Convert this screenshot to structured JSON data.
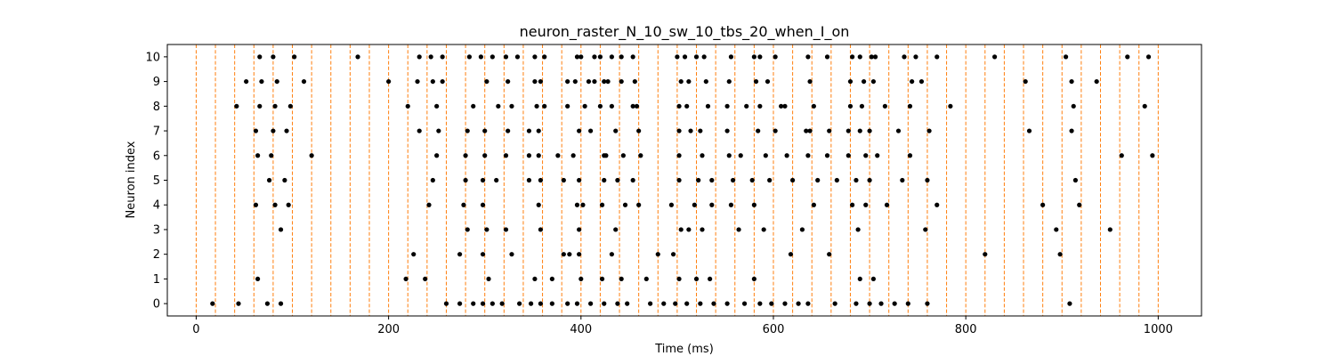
{
  "chart_data": {
    "type": "scatter",
    "title": "neuron_raster_N_10_sw_10_tbs_20_when_I_on",
    "xlabel": "Time (ms)",
    "ylabel": "Neuron index",
    "xlim": [
      -30,
      1045
    ],
    "ylim": [
      -0.5,
      10.5
    ],
    "xticks": [
      0,
      200,
      400,
      600,
      800,
      1000
    ],
    "yticks": [
      0,
      1,
      2,
      3,
      4,
      5,
      6,
      7,
      8,
      9,
      10
    ],
    "grid": false,
    "point_color": "#000000",
    "vlines": {
      "color": "#ff7f0e",
      "style": "dashed",
      "x": [
        0,
        20,
        40,
        60,
        80,
        100,
        120,
        140,
        160,
        180,
        200,
        220,
        240,
        260,
        280,
        300,
        320,
        340,
        360,
        380,
        400,
        420,
        440,
        460,
        480,
        500,
        520,
        540,
        560,
        580,
        600,
        620,
        640,
        660,
        680,
        700,
        720,
        740,
        760,
        780,
        800,
        820,
        840,
        860,
        880,
        900,
        920,
        940,
        960,
        980,
        1000
      ]
    },
    "series": [
      {
        "neuron": 0,
        "times": [
          17,
          44,
          74,
          88,
          260,
          274,
          288,
          298,
          308,
          318,
          336,
          348,
          358,
          370,
          386,
          396,
          410,
          424,
          438,
          448,
          472,
          486,
          498,
          510,
          524,
          538,
          552,
          570,
          586,
          598,
          612,
          626,
          636,
          664,
          686,
          700,
          712,
          726,
          740,
          760,
          908
        ]
      },
      {
        "neuron": 1,
        "times": [
          64,
          218,
          238,
          304,
          352,
          370,
          400,
          422,
          442,
          468,
          502,
          520,
          534,
          580,
          690,
          704
        ]
      },
      {
        "neuron": 2,
        "times": [
          226,
          274,
          298,
          328,
          382,
          388,
          398,
          432,
          480,
          496,
          618,
          658,
          820,
          898
        ]
      },
      {
        "neuron": 3,
        "times": [
          88,
          282,
          302,
          322,
          358,
          398,
          436,
          504,
          512,
          526,
          564,
          590,
          630,
          688,
          758,
          894,
          950
        ]
      },
      {
        "neuron": 4,
        "times": [
          62,
          82,
          96,
          242,
          278,
          298,
          356,
          396,
          402,
          422,
          446,
          460,
          494,
          518,
          536,
          556,
          580,
          642,
          682,
          696,
          718,
          770,
          880,
          918
        ]
      },
      {
        "neuron": 5,
        "times": [
          76,
          92,
          246,
          280,
          298,
          312,
          346,
          358,
          382,
          398,
          424,
          438,
          454,
          502,
          522,
          536,
          558,
          578,
          596,
          620,
          646,
          666,
          686,
          700,
          734,
          760,
          914
        ]
      },
      {
        "neuron": 6,
        "times": [
          64,
          78,
          120,
          250,
          280,
          300,
          322,
          346,
          356,
          376,
          392,
          424,
          426,
          444,
          462,
          502,
          526,
          554,
          566,
          592,
          614,
          636,
          656,
          678,
          696,
          708,
          742,
          962,
          994
        ]
      },
      {
        "neuron": 7,
        "times": [
          62,
          80,
          94,
          232,
          252,
          282,
          300,
          324,
          346,
          356,
          398,
          410,
          436,
          460,
          502,
          514,
          524,
          552,
          584,
          602,
          634,
          638,
          658,
          678,
          690,
          700,
          730,
          762,
          866,
          910
        ]
      },
      {
        "neuron": 8,
        "times": [
          42,
          66,
          82,
          98,
          220,
          250,
          288,
          314,
          328,
          354,
          362,
          386,
          404,
          420,
          432,
          454,
          458,
          502,
          510,
          532,
          552,
          572,
          586,
          608,
          612,
          642,
          680,
          692,
          716,
          742,
          784,
          912,
          986
        ]
      },
      {
        "neuron": 9,
        "times": [
          52,
          68,
          84,
          112,
          200,
          230,
          246,
          256,
          302,
          324,
          352,
          358,
          386,
          394,
          408,
          414,
          424,
          428,
          442,
          456,
          504,
          512,
          530,
          554,
          582,
          594,
          638,
          680,
          694,
          704,
          744,
          754,
          862,
          910,
          936
        ]
      },
      {
        "neuron": 10,
        "times": [
          66,
          80,
          102,
          168,
          232,
          244,
          256,
          284,
          296,
          308,
          322,
          334,
          352,
          362,
          396,
          400,
          414,
          420,
          432,
          442,
          454,
          500,
          508,
          520,
          528,
          556,
          580,
          586,
          602,
          636,
          656,
          682,
          690,
          702,
          706,
          736,
          748,
          770,
          830,
          904,
          968,
          990
        ]
      }
    ]
  }
}
